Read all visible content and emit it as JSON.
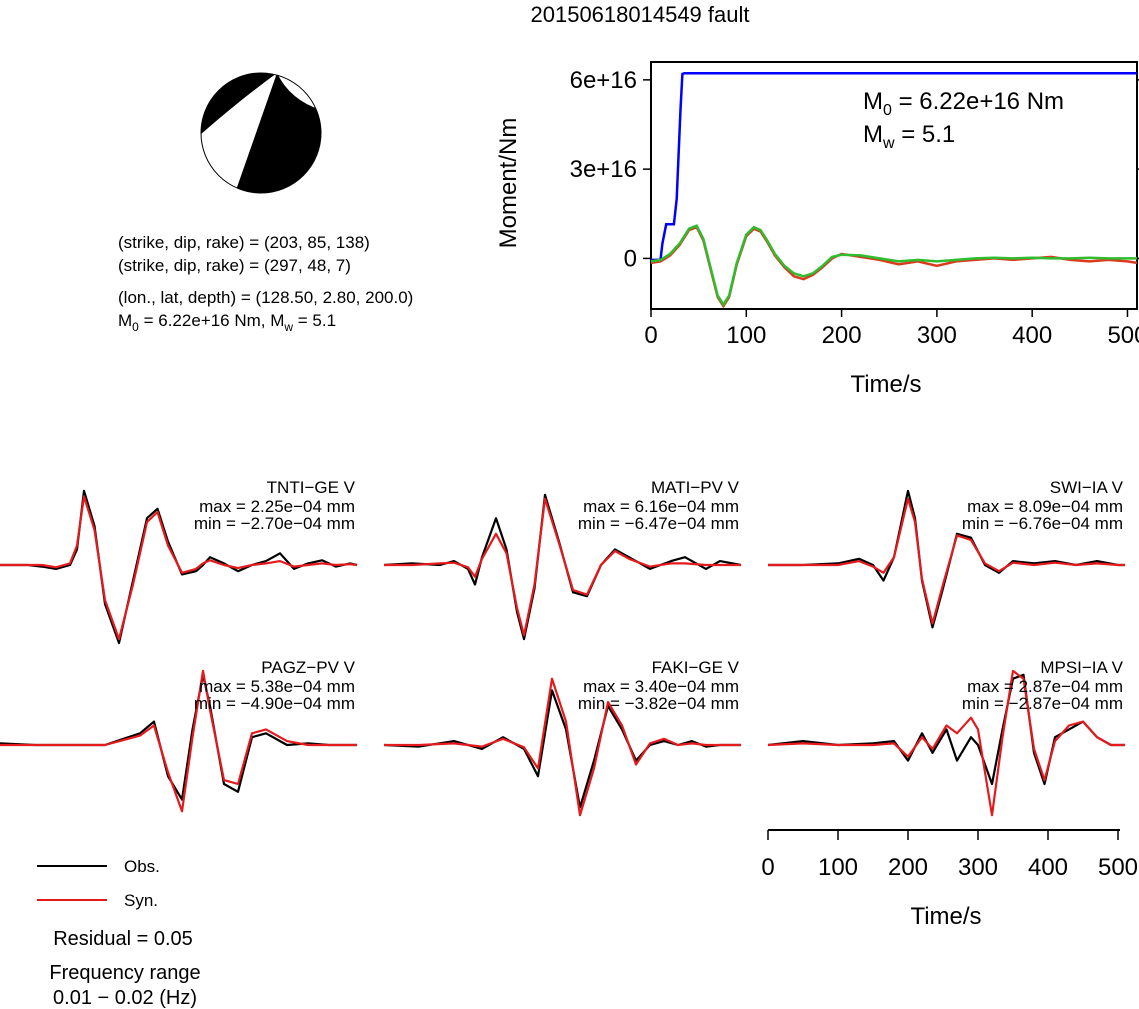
{
  "title": "20150618014549 fault",
  "mechanism": {
    "plane1": "(strike, dip, rake) = (203, 85, 138)",
    "plane2": "(strike, dip, rake) = (297, 48, 7)",
    "location": "(lon., lat, depth) = (128.50, 2.80, 200.0)",
    "moment_text_base": "M",
    "moment_text_rest": " = 6.22e+16 Nm, M",
    "moment_text_tail": " = 5.1",
    "sub0": "0",
    "subw": "w"
  },
  "legend": {
    "obs_label": "Obs.",
    "syn_label": "Syn.",
    "obs_color": "#000000",
    "syn_color": "#e41a1c"
  },
  "residual": "Residual = 0.05",
  "freq_title": "Frequency range",
  "freq_value": "0.01 − 0.02 (Hz)",
  "wave_xaxis": {
    "label": "Time/s",
    "ticks": [
      "0",
      "100",
      "200",
      "300",
      "400",
      "500"
    ]
  },
  "chart_data": [
    {
      "type": "line",
      "title": "",
      "xlabel": "Time/s",
      "ylabel": "Moment/Nm",
      "xlim": [
        0,
        510
      ],
      "ylim": [
        -1.7e+16,
        6.6e+16
      ],
      "xticks": [
        0,
        100,
        200,
        300,
        400,
        500
      ],
      "yticks": [
        0,
        3e+16,
        6e+16
      ],
      "ytick_labels": [
        "0",
        "3e+16",
        "6e+16"
      ],
      "annotation_m0_base": "M",
      "annotation_m0_sub": "0",
      "annotation_m0_rest": " = 6.22e+16 Nm",
      "annotation_mw_base": "M",
      "annotation_mw_sub": "w",
      "annotation_mw_rest": " = 5.1",
      "series": [
        {
          "color": "#0000ff",
          "x": [
            0,
            10,
            12,
            16,
            18,
            20,
            24,
            27,
            29,
            31,
            33,
            35,
            510
          ],
          "y": [
            -500000000000000.0,
            -500000000000000.0,
            5000000000000000.0,
            1.15e+16,
            1.15e+16,
            1.15e+16,
            1.15e+16,
            2e+16,
            3.5e+16,
            5e+16,
            6.2e+16,
            6.22e+16,
            6.22e+16
          ]
        },
        {
          "color": "#d93b1c",
          "x": [
            0,
            10,
            20,
            30,
            40,
            48,
            55,
            62,
            70,
            76,
            82,
            90,
            100,
            108,
            115,
            122,
            130,
            140,
            150,
            160,
            170,
            180,
            190,
            200,
            220,
            240,
            260,
            280,
            300,
            320,
            340,
            360,
            380,
            400,
            420,
            440,
            460,
            480,
            500,
            510
          ],
          "y": [
            -1500000000000000.0,
            -1000000000000000.0,
            1000000000000000.0,
            4500000000000000.0,
            9500000000000000.0,
            1.05e+16,
            6000000000000000.0,
            -3000000000000000.0,
            -1.3e+16,
            -1.6e+16,
            -1.3e+16,
            -2000000000000000.0,
            7500000000000000.0,
            1e+16,
            9000000000000000.0,
            5500000000000000.0,
            1000000000000000.0,
            -3000000000000000.0,
            -6000000000000000.0,
            -7000000000000000.0,
            -5500000000000000.0,
            -3000000000000000.0,
            0.0,
            1500000000000000.0,
            500000000000000.0,
            -500000000000000.0,
            -2000000000000000.0,
            -1000000000000000.0,
            -2500000000000000.0,
            -1000000000000000.0,
            -500000000000000.0,
            0.0,
            -500000000000000.0,
            0.0,
            500000000000000.0,
            -500000000000000.0,
            -1000000000000000.0,
            -500000000000000.0,
            -1000000000000000.0,
            -1500000000000000.0
          ]
        },
        {
          "color": "#2ebd2e",
          "x": [
            0,
            10,
            20,
            30,
            40,
            48,
            55,
            62,
            70,
            76,
            82,
            90,
            100,
            108,
            115,
            122,
            130,
            140,
            150,
            160,
            170,
            180,
            190,
            200,
            220,
            240,
            260,
            280,
            300,
            320,
            340,
            360,
            380,
            400,
            420,
            440,
            460,
            480,
            500,
            510
          ],
          "y": [
            -1000000000000000.0,
            -500000000000000.0,
            1500000000000000.0,
            5000000000000000.0,
            1e+16,
            1.1e+16,
            6500000000000000.0,
            -2500000000000000.0,
            -1.25e+16,
            -1.55e+16,
            -1.25e+16,
            -1500000000000000.0,
            8000000000000000.0,
            1.05e+16,
            9500000000000000.0,
            6000000000000000.0,
            1500000000000000.0,
            -2500000000000000.0,
            -5000000000000000.0,
            -6000000000000000.0,
            -5000000000000000.0,
            -2500000000000000.0,
            500000000000000.0,
            1200000000000000.0,
            1000000000000000.0,
            0.0,
            -1000000000000000.0,
            -500000000000000.0,
            -1000000000000000.0,
            -500000000000000.0,
            0.0,
            200000000000000.0,
            0.0,
            200000000000000.0,
            0.0,
            0.0,
            200000000000000.0,
            0.0,
            0.0,
            0.0
          ]
        }
      ]
    },
    {
      "type": "line",
      "station": "TNTI−GE V",
      "max_text": "max = 2.25e−04 mm",
      "min_text": "min = −2.70e−04 mm",
      "xlim": [
        0,
        510
      ],
      "ylim": [
        -1,
        1
      ],
      "series": [
        {
          "name": "Obs.",
          "x": [
            0,
            40,
            60,
            80,
            100,
            110,
            120,
            135,
            150,
            170,
            190,
            210,
            225,
            240,
            260,
            280,
            290,
            300,
            320,
            340,
            360,
            380,
            400,
            420,
            440,
            460,
            480,
            500,
            510
          ],
          "y": [
            0.0,
            0.0,
            -0.02,
            -0.05,
            0.0,
            0.2,
            0.95,
            0.5,
            -0.5,
            -1.0,
            -0.2,
            0.6,
            0.72,
            0.3,
            -0.12,
            -0.08,
            0.0,
            0.1,
            0.02,
            -0.08,
            0.0,
            0.05,
            0.15,
            -0.05,
            0.02,
            0.06,
            -0.02,
            0.02,
            0.0
          ]
        },
        {
          "name": "Syn.",
          "x": [
            0,
            40,
            60,
            80,
            100,
            110,
            120,
            135,
            150,
            170,
            190,
            210,
            225,
            240,
            260,
            280,
            290,
            300,
            320,
            340,
            360,
            380,
            400,
            420,
            440,
            460,
            480,
            500,
            510
          ],
          "y": [
            0.0,
            0.0,
            0.0,
            -0.03,
            0.02,
            0.25,
            0.88,
            0.45,
            -0.45,
            -0.95,
            -0.25,
            0.55,
            0.68,
            0.25,
            -0.1,
            -0.05,
            0.02,
            0.06,
            0.0,
            -0.04,
            0.0,
            0.02,
            0.05,
            -0.02,
            0.0,
            0.02,
            0.0,
            0.01,
            0.0
          ]
        }
      ]
    },
    {
      "type": "line",
      "station": "MATI−PV V",
      "max_text": "max = 6.16e−04 mm",
      "min_text": "min = −6.47e−04 mm",
      "xlim": [
        0,
        510
      ],
      "ylim": [
        -1,
        1
      ],
      "series": [
        {
          "name": "Obs.",
          "x": [
            0,
            40,
            80,
            100,
            120,
            130,
            140,
            160,
            175,
            190,
            200,
            215,
            230,
            250,
            270,
            290,
            310,
            330,
            350,
            380,
            410,
            430,
            460,
            480,
            510
          ],
          "y": [
            0.0,
            0.02,
            0.0,
            0.05,
            -0.05,
            -0.25,
            0.1,
            0.6,
            0.2,
            -0.6,
            -0.95,
            -0.3,
            0.9,
            0.3,
            -0.35,
            -0.4,
            0.0,
            0.2,
            0.1,
            -0.05,
            0.05,
            0.1,
            -0.05,
            0.05,
            0.0
          ]
        },
        {
          "name": "Syn.",
          "x": [
            0,
            40,
            80,
            100,
            120,
            130,
            140,
            160,
            175,
            190,
            200,
            215,
            230,
            250,
            270,
            290,
            310,
            330,
            350,
            380,
            410,
            430,
            460,
            480,
            510
          ],
          "y": [
            0.0,
            0.0,
            0.02,
            0.03,
            -0.03,
            -0.15,
            0.08,
            0.4,
            0.15,
            -0.55,
            -0.9,
            -0.25,
            0.85,
            0.28,
            -0.32,
            -0.38,
            0.0,
            0.18,
            0.08,
            -0.02,
            0.02,
            0.02,
            0.0,
            0.0,
            0.0
          ]
        }
      ]
    },
    {
      "type": "line",
      "station": "SWI−IA V",
      "max_text": "max = 8.09e−04 mm",
      "min_text": "min = −6.76e−04 mm",
      "xlim": [
        0,
        510
      ],
      "ylim": [
        -1,
        1
      ],
      "series": [
        {
          "name": "Obs.",
          "x": [
            0,
            50,
            100,
            130,
            150,
            165,
            180,
            200,
            210,
            220,
            235,
            250,
            270,
            290,
            310,
            330,
            350,
            380,
            410,
            440,
            470,
            500,
            510
          ],
          "y": [
            0.0,
            0.0,
            0.02,
            0.08,
            0.0,
            -0.2,
            0.1,
            0.95,
            0.6,
            -0.2,
            -0.8,
            -0.3,
            0.4,
            0.35,
            0.0,
            -0.1,
            0.05,
            0.02,
            0.05,
            0.0,
            0.05,
            0.0,
            0.0
          ]
        },
        {
          "name": "Syn.",
          "x": [
            0,
            50,
            100,
            130,
            150,
            165,
            180,
            200,
            210,
            220,
            235,
            250,
            270,
            290,
            310,
            330,
            350,
            380,
            410,
            440,
            470,
            500,
            510
          ],
          "y": [
            0.0,
            0.0,
            0.0,
            0.05,
            -0.02,
            -0.1,
            0.1,
            0.85,
            0.55,
            -0.18,
            -0.75,
            -0.25,
            0.38,
            0.32,
            0.02,
            -0.08,
            0.03,
            0.0,
            0.03,
            0.0,
            0.02,
            0.0,
            0.0
          ]
        }
      ]
    },
    {
      "type": "line",
      "station": "PAGZ−PV V",
      "max_text": "max = 5.38e−04 mm",
      "min_text": "min = −4.90e−04 mm",
      "xlim": [
        0,
        510
      ],
      "ylim": [
        -1,
        1
      ],
      "series": [
        {
          "name": "Obs.",
          "x": [
            0,
            50,
            100,
            150,
            200,
            220,
            240,
            260,
            275,
            290,
            300,
            320,
            340,
            360,
            380,
            410,
            440,
            470,
            500,
            510
          ],
          "y": [
            0.02,
            0.0,
            0.0,
            0.0,
            0.15,
            0.3,
            -0.4,
            -0.7,
            0.2,
            0.9,
            0.5,
            -0.5,
            -0.6,
            0.1,
            0.15,
            0.0,
            0.02,
            0.0,
            0.0,
            0.0
          ]
        },
        {
          "name": "Syn.",
          "x": [
            0,
            50,
            100,
            150,
            200,
            220,
            240,
            260,
            275,
            290,
            300,
            320,
            340,
            360,
            380,
            410,
            440,
            470,
            500,
            510
          ],
          "y": [
            0.0,
            0.0,
            0.0,
            0.0,
            0.12,
            0.25,
            -0.35,
            -0.85,
            0.1,
            0.95,
            0.45,
            -0.45,
            -0.5,
            0.15,
            0.2,
            0.05,
            0.0,
            0.0,
            0.0,
            0.0
          ]
        }
      ]
    },
    {
      "type": "line",
      "station": "FAKI−GE V",
      "max_text": "max = 3.40e−04 mm",
      "min_text": "min = −3.82e−04 mm",
      "xlim": [
        0,
        510
      ],
      "ylim": [
        -1,
        1
      ],
      "series": [
        {
          "name": "Obs.",
          "x": [
            0,
            50,
            100,
            140,
            170,
            200,
            220,
            240,
            260,
            280,
            300,
            320,
            340,
            360,
            380,
            400,
            420,
            440,
            460,
            480,
            510
          ],
          "y": [
            0.0,
            -0.02,
            0.05,
            -0.05,
            0.1,
            -0.05,
            -0.4,
            0.7,
            0.2,
            -0.8,
            -0.2,
            0.5,
            0.2,
            -0.2,
            0.0,
            0.05,
            0.0,
            0.05,
            -0.02,
            0.0,
            0.0
          ]
        },
        {
          "name": "Syn.",
          "x": [
            0,
            50,
            100,
            140,
            170,
            200,
            220,
            240,
            260,
            280,
            300,
            320,
            340,
            360,
            380,
            400,
            420,
            440,
            460,
            480,
            510
          ],
          "y": [
            0.0,
            0.0,
            0.02,
            -0.02,
            0.08,
            -0.03,
            -0.3,
            0.85,
            0.3,
            -0.9,
            -0.3,
            0.55,
            0.25,
            -0.25,
            0.02,
            0.08,
            0.0,
            0.02,
            0.0,
            0.0,
            0.0
          ]
        }
      ]
    },
    {
      "type": "line",
      "station": "MPSI−IA V",
      "max_text": "max = 2.87e−04 mm",
      "min_text": "min = −2.87e−04 mm",
      "xlabel": "Time/s",
      "xticks": [
        0,
        100,
        200,
        300,
        400,
        500
      ],
      "xlim": [
        0,
        510
      ],
      "ylim": [
        -1,
        1
      ],
      "series": [
        {
          "name": "Obs.",
          "x": [
            0,
            50,
            100,
            150,
            180,
            200,
            220,
            235,
            255,
            270,
            290,
            300,
            320,
            335,
            350,
            365,
            380,
            395,
            410,
            430,
            450,
            470,
            490,
            510
          ],
          "y": [
            0.0,
            0.05,
            0.0,
            0.02,
            0.05,
            -0.2,
            0.15,
            -0.1,
            0.2,
            -0.2,
            0.1,
            0.0,
            -0.5,
            0.2,
            0.85,
            0.9,
            -0.1,
            -0.5,
            0.1,
            0.2,
            0.3,
            0.1,
            0.0,
            0.0
          ]
        },
        {
          "name": "Syn.",
          "x": [
            0,
            50,
            100,
            150,
            180,
            200,
            220,
            235,
            255,
            270,
            290,
            300,
            320,
            335,
            350,
            365,
            380,
            395,
            410,
            430,
            450,
            470,
            490,
            510
          ],
          "y": [
            0.0,
            0.02,
            0.0,
            0.0,
            0.02,
            -0.15,
            0.1,
            -0.05,
            0.25,
            0.15,
            0.35,
            0.2,
            -0.9,
            0.1,
            0.95,
            0.85,
            -0.05,
            -0.45,
            0.05,
            0.25,
            0.3,
            0.1,
            0.0,
            0.0
          ]
        }
      ]
    }
  ]
}
